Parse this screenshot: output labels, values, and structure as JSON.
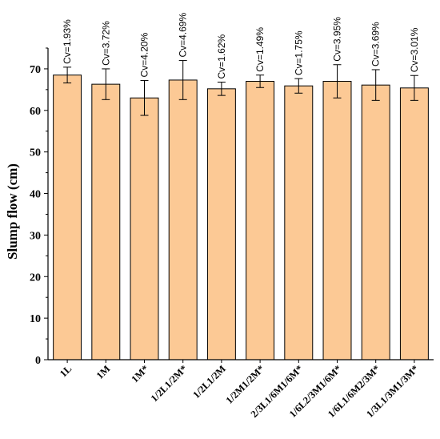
{
  "chart_data": {
    "type": "bar",
    "ylabel": "Slump flow (cm)",
    "xlabel": "",
    "ylim": [
      0,
      75
    ],
    "yticks": [
      0,
      10,
      20,
      30,
      40,
      50,
      60,
      70
    ],
    "categories": [
      "1L",
      "1M",
      "1M*",
      "1/2L1/2M*",
      "1/2L1/2M",
      "1/2M1/2M*",
      "2/3L1/6M1/6M*",
      "1/6L2/3M1/6M*",
      "1/6L1/6M2/3M*",
      "1/3L1/3M1/3M*"
    ],
    "values": [
      68.5,
      66.3,
      63.0,
      67.3,
      65.2,
      67.0,
      65.9,
      67.0,
      66.1,
      65.4
    ],
    "errors": [
      1.9,
      3.7,
      4.2,
      4.7,
      1.6,
      1.5,
      1.75,
      4.0,
      3.7,
      3.0
    ],
    "annotations": [
      "Cv=1.93%",
      "Cv=3.72%",
      "Cv=4.20%",
      "Cv=4.69%",
      "Cv=1.62%",
      "Cv=1.49%",
      "Cv=1.75%",
      "Cv=3.95%",
      "Cv=3.69%",
      "Cv=3.01%"
    ],
    "colors": {
      "bar": "#fcc995",
      "bar_stroke": "#000000"
    },
    "grid": false,
    "legend": "none"
  }
}
